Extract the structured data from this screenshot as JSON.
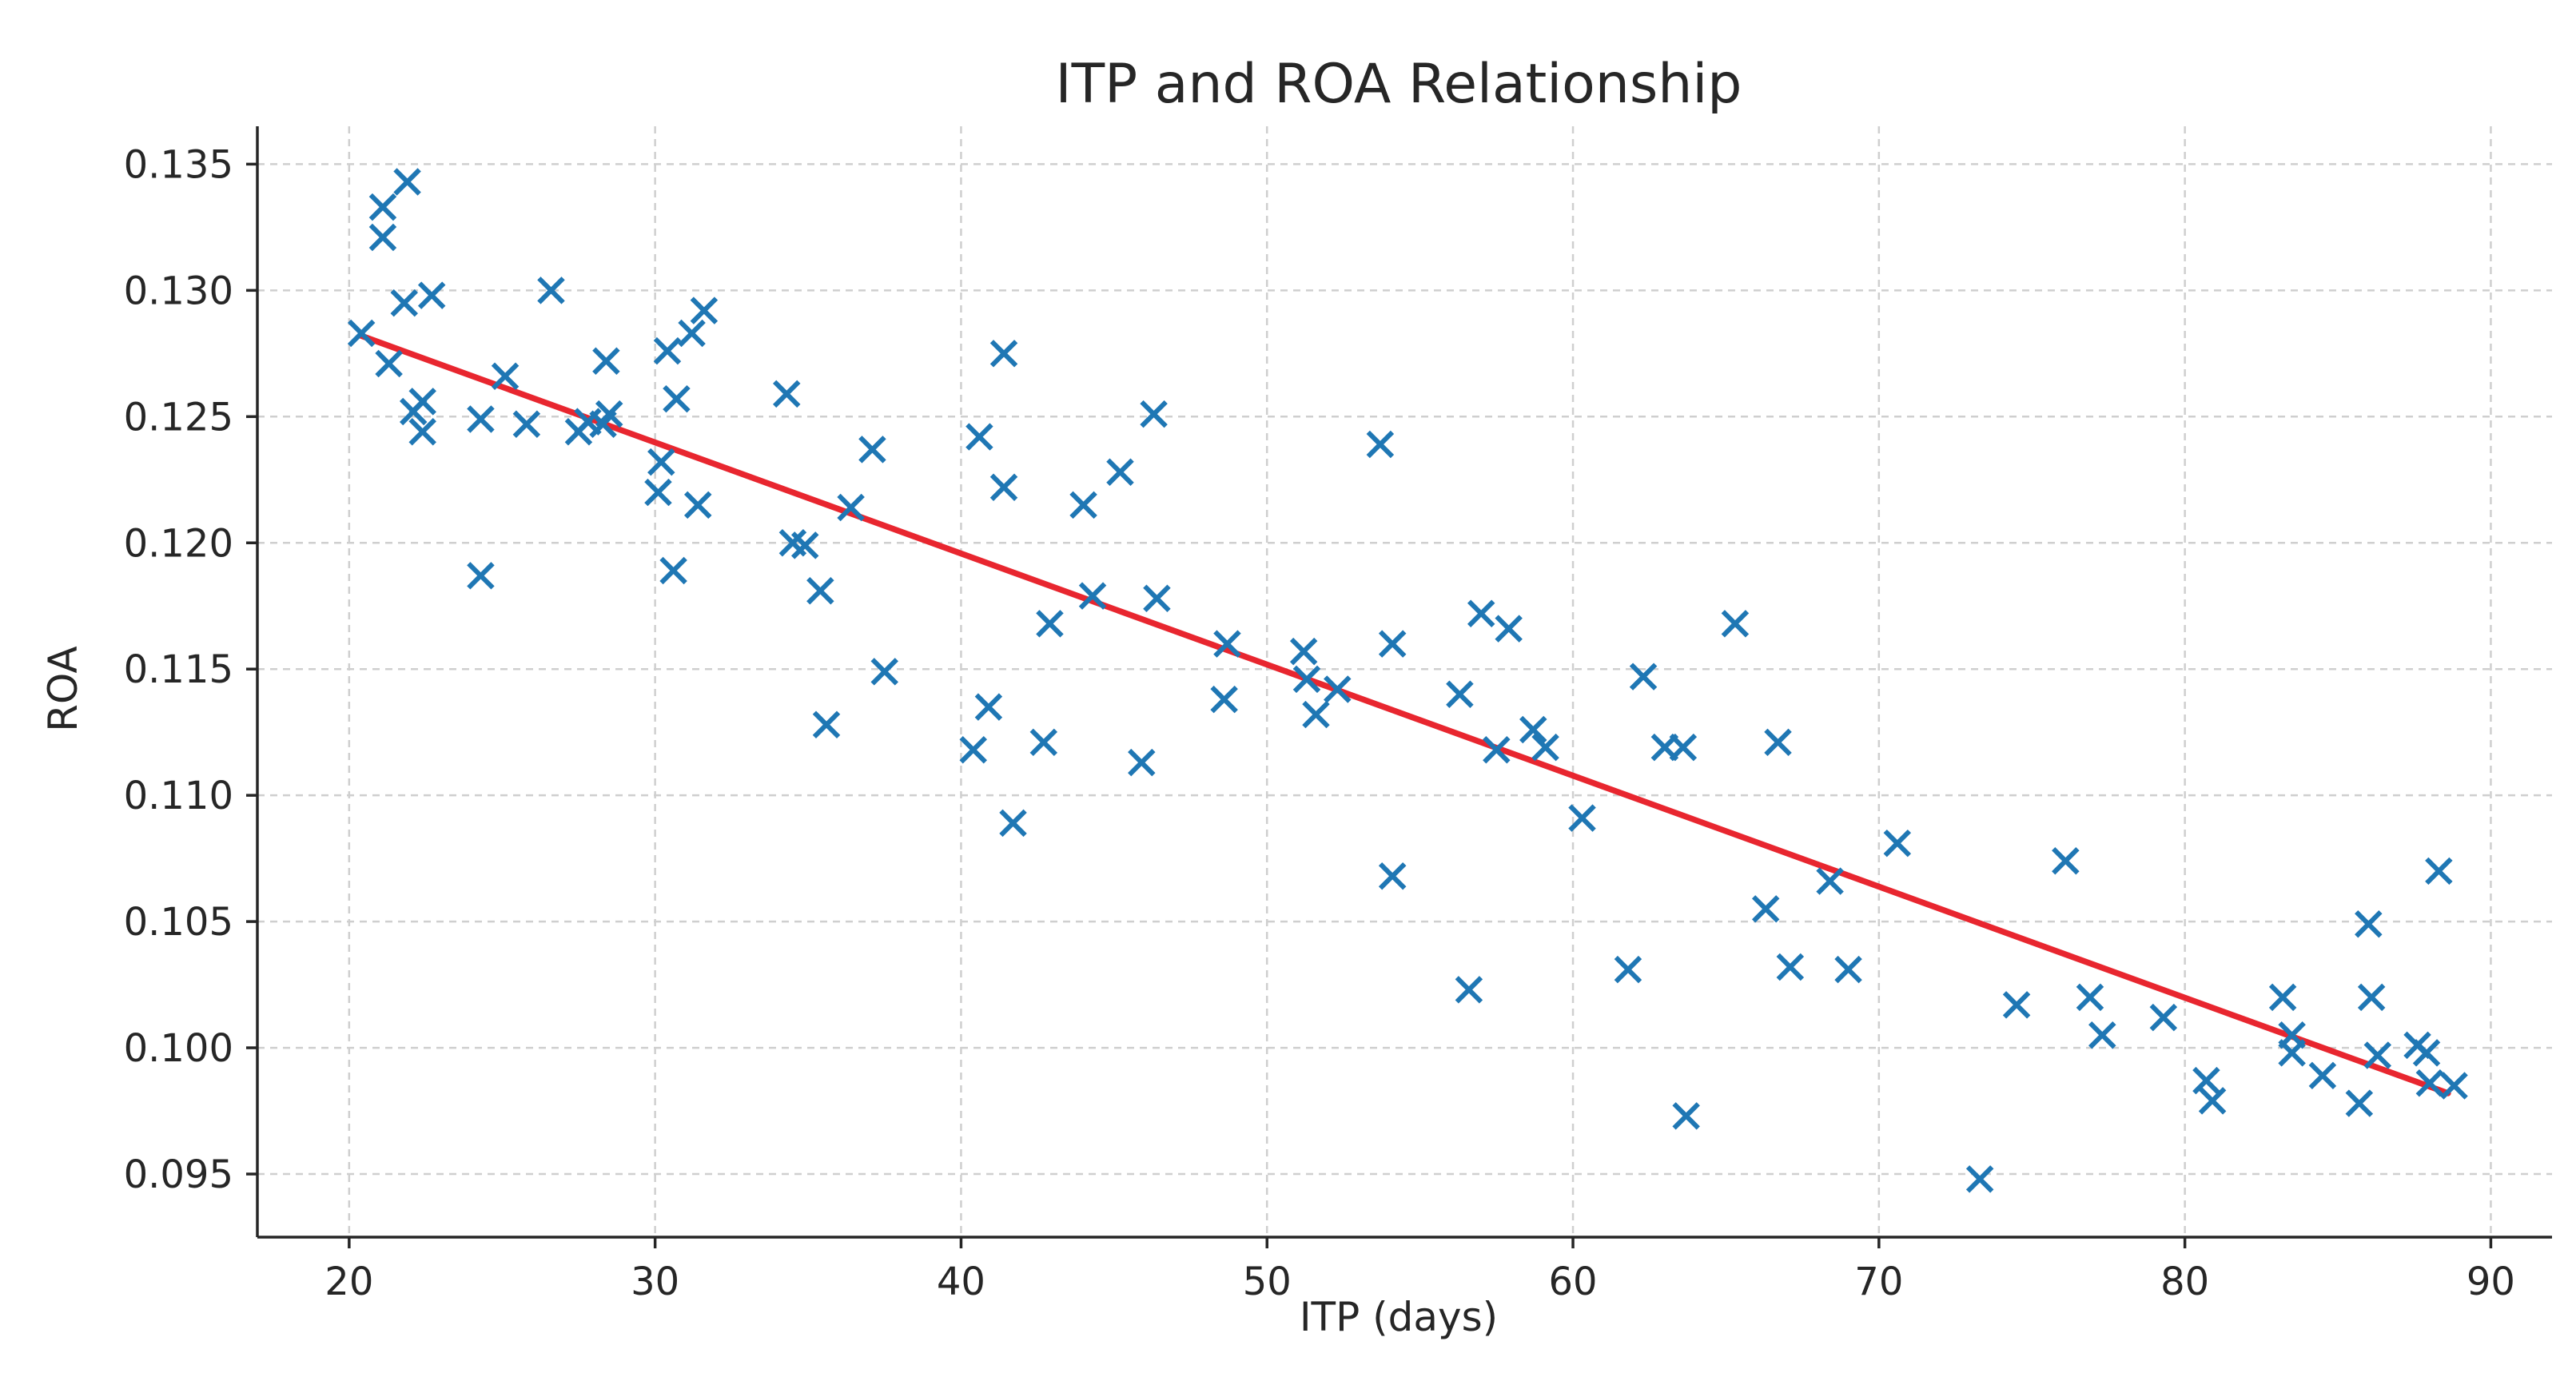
{
  "chart_data": {
    "type": "scatter",
    "title": "ITP and ROA Relationship",
    "xlabel": "ITP (days)",
    "ylabel": "ROA",
    "xlim": [
      17,
      92
    ],
    "ylim": [
      0.0925,
      0.1365
    ],
    "xticks": [
      20,
      30,
      40,
      50,
      60,
      70,
      80,
      90
    ],
    "yticks": [
      0.095,
      0.1,
      0.105,
      0.11,
      0.115,
      0.12,
      0.125,
      0.13,
      0.135
    ],
    "ytick_labels": [
      "0.095",
      "0.100",
      "0.105",
      "0.110",
      "0.115",
      "0.120",
      "0.125",
      "0.130",
      "0.135"
    ],
    "grid": true,
    "colors": {
      "points": "#1f77b4",
      "fit": "#e8262f"
    },
    "points": [
      [
        20.4,
        0.1283
      ],
      [
        21.1,
        0.1333
      ],
      [
        21.1,
        0.1321
      ],
      [
        21.3,
        0.1271
      ],
      [
        21.9,
        0.1343
      ],
      [
        21.8,
        0.1295
      ],
      [
        22.1,
        0.1252
      ],
      [
        22.4,
        0.1256
      ],
      [
        22.4,
        0.1244
      ],
      [
        22.7,
        0.1298
      ],
      [
        24.3,
        0.1249
      ],
      [
        24.3,
        0.1187
      ],
      [
        25.1,
        0.1266
      ],
      [
        25.8,
        0.1247
      ],
      [
        26.6,
        0.13
      ],
      [
        27.5,
        0.1244
      ],
      [
        27.8,
        0.1248
      ],
      [
        28.3,
        0.1247
      ],
      [
        28.4,
        0.1272
      ],
      [
        28.5,
        0.1251
      ],
      [
        30.1,
        0.122
      ],
      [
        30.2,
        0.1232
      ],
      [
        30.4,
        0.1276
      ],
      [
        30.6,
        0.1189
      ],
      [
        30.7,
        0.1257
      ],
      [
        31.2,
        0.1283
      ],
      [
        31.4,
        0.1215
      ],
      [
        31.6,
        0.1292
      ],
      [
        34.3,
        0.1259
      ],
      [
        34.5,
        0.12
      ],
      [
        34.9,
        0.1199
      ],
      [
        35.4,
        0.1181
      ],
      [
        35.6,
        0.1128
      ],
      [
        36.4,
        0.1214
      ],
      [
        37.1,
        0.1237
      ],
      [
        37.5,
        0.1149
      ],
      [
        40.4,
        0.1118
      ],
      [
        40.6,
        0.1242
      ],
      [
        40.9,
        0.1135
      ],
      [
        41.4,
        0.1275
      ],
      [
        41.4,
        0.1222
      ],
      [
        41.7,
        0.1089
      ],
      [
        42.7,
        0.1121
      ],
      [
        42.9,
        0.1168
      ],
      [
        44.0,
        0.1215
      ],
      [
        44.3,
        0.1179
      ],
      [
        45.2,
        0.1228
      ],
      [
        45.9,
        0.1113
      ],
      [
        46.3,
        0.1251
      ],
      [
        46.4,
        0.1178
      ],
      [
        48.6,
        0.1138
      ],
      [
        48.7,
        0.116
      ],
      [
        51.2,
        0.1157
      ],
      [
        51.3,
        0.1146
      ],
      [
        51.6,
        0.1132
      ],
      [
        52.3,
        0.1142
      ],
      [
        53.7,
        0.1239
      ],
      [
        54.1,
        0.116
      ],
      [
        54.1,
        0.1068
      ],
      [
        56.3,
        0.114
      ],
      [
        56.6,
        0.1023
      ],
      [
        57.0,
        0.1172
      ],
      [
        57.5,
        0.1118
      ],
      [
        57.9,
        0.1166
      ],
      [
        58.7,
        0.1126
      ],
      [
        59.1,
        0.1119
      ],
      [
        60.3,
        0.1091
      ],
      [
        61.8,
        0.1031
      ],
      [
        62.3,
        0.1147
      ],
      [
        63.0,
        0.1119
      ],
      [
        63.6,
        0.1119
      ],
      [
        63.7,
        0.0973
      ],
      [
        65.3,
        0.1168
      ],
      [
        66.3,
        0.1055
      ],
      [
        66.7,
        0.1121
      ],
      [
        67.1,
        0.1032
      ],
      [
        68.4,
        0.1066
      ],
      [
        69.0,
        0.1031
      ],
      [
        70.6,
        0.1081
      ],
      [
        73.3,
        0.0948
      ],
      [
        74.5,
        0.1017
      ],
      [
        76.1,
        0.1074
      ],
      [
        76.9,
        0.102
      ],
      [
        77.3,
        0.1005
      ],
      [
        79.3,
        0.1012
      ],
      [
        80.7,
        0.0987
      ],
      [
        80.9,
        0.0979
      ],
      [
        83.2,
        0.102
      ],
      [
        83.5,
        0.1005
      ],
      [
        83.5,
        0.0998
      ],
      [
        84.5,
        0.0989
      ],
      [
        85.7,
        0.0978
      ],
      [
        86.0,
        0.1049
      ],
      [
        86.1,
        0.102
      ],
      [
        86.3,
        0.0997
      ],
      [
        87.6,
        0.1001
      ],
      [
        87.9,
        0.0998
      ],
      [
        88.0,
        0.0986
      ],
      [
        88.3,
        0.107
      ],
      [
        88.8,
        0.0985
      ]
    ],
    "fit_line": {
      "x": [
        20.4,
        88.6
      ],
      "y": [
        0.1282,
        0.0982
      ]
    }
  }
}
